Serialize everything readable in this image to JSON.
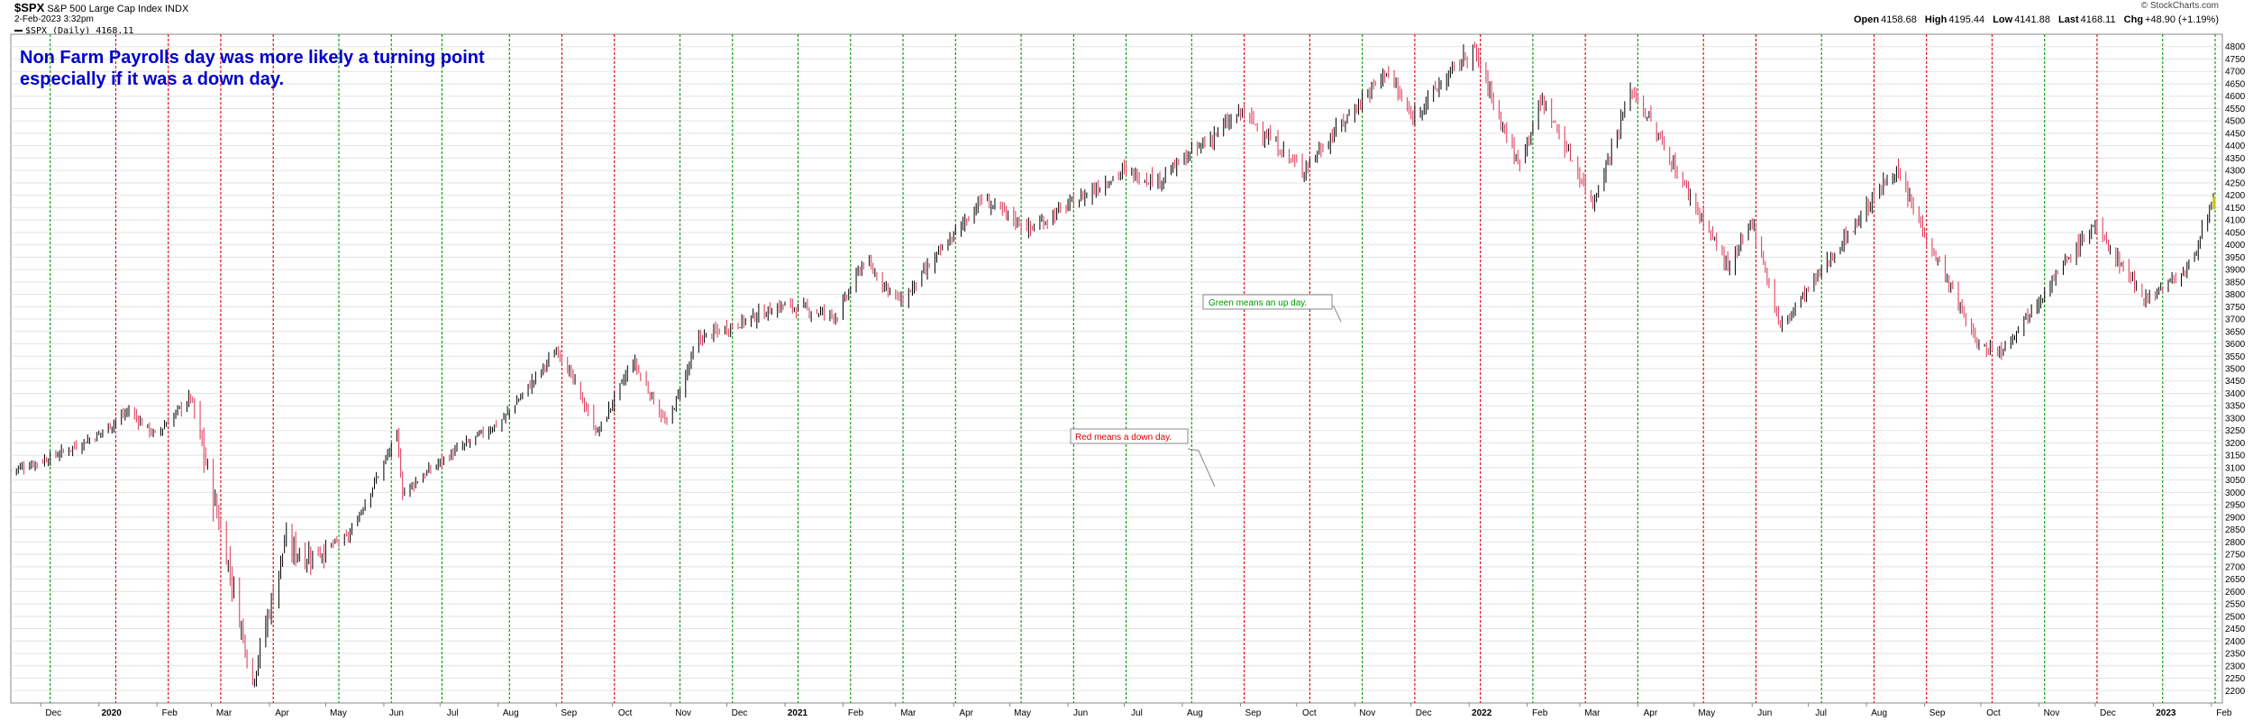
{
  "header": {
    "symbol": "$SPX",
    "name": "S&P 500 Large Cap Index",
    "exchange": "INDX",
    "datetime": "2-Feb-2023 3:32pm",
    "legend": "$SPX (Daily) 4168.11",
    "quote": {
      "open_label": "Open",
      "open": "4158.68",
      "high_label": "High",
      "high": "4195.44",
      "low_label": "Low",
      "low": "4141.88",
      "last_label": "Last",
      "last": "4168.11",
      "chg_label": "Chg",
      "chg": "+48.90 (+1.19%)"
    },
    "credit": "© StockCharts.com"
  },
  "annotations": {
    "headline_line1": "Non Farm Payrolls day was more likely a turning point",
    "headline_line2": "especially if it was a down day.",
    "callout_green": "Green means an up day.",
    "callout_red": "Red means a down day."
  },
  "colors": {
    "up_marker": "#009900",
    "down_marker": "#dd0000",
    "bar_up": "#000000",
    "bar_down": "#dd3355",
    "headline": "#0000cc",
    "grid": "#e3e3e3",
    "last_bar": "#c8c800"
  },
  "chart_data": {
    "type": "line",
    "series_name": "$SPX (Daily)",
    "ylim": [
      2150,
      4850
    ],
    "y_ticks": [
      2200,
      2250,
      2300,
      2350,
      2400,
      2450,
      2500,
      2550,
      2600,
      2650,
      2700,
      2750,
      2800,
      2850,
      2900,
      2950,
      3000,
      3050,
      3100,
      3150,
      3200,
      3250,
      3300,
      3350,
      3400,
      3450,
      3500,
      3550,
      3600,
      3650,
      3700,
      3750,
      3800,
      3850,
      3900,
      3950,
      4000,
      4050,
      4100,
      4150,
      4200,
      4250,
      4300,
      4350,
      4400,
      4450,
      4500,
      4550,
      4600,
      4650,
      4700,
      4750,
      4800
    ],
    "x_ticks": [
      "Dec",
      "2020",
      "Feb",
      "Mar",
      "Apr",
      "May",
      "Jun",
      "Jul",
      "Aug",
      "Sep",
      "Oct",
      "Nov",
      "Dec",
      "2021",
      "Feb",
      "Mar",
      "Apr",
      "May",
      "Jun",
      "Jul",
      "Aug",
      "Sep",
      "Oct",
      "Nov",
      "Dec",
      "2022",
      "Feb",
      "Mar",
      "Apr",
      "May",
      "Jun",
      "Jul",
      "Aug",
      "Sep",
      "Oct",
      "Nov",
      "Dec",
      "2023",
      "Feb"
    ],
    "x_range": [
      "2019-11-15",
      "2023-02-03"
    ],
    "price_path": [
      {
        "date": "2019-11-15",
        "close": 3090
      },
      {
        "date": "2019-12-06",
        "close": 3140
      },
      {
        "date": "2019-12-31",
        "close": 3230
      },
      {
        "date": "2020-01-17",
        "close": 3330
      },
      {
        "date": "2020-01-31",
        "close": 3230
      },
      {
        "date": "2020-02-19",
        "close": 3386
      },
      {
        "date": "2020-03-09",
        "close": 2750
      },
      {
        "date": "2020-03-23",
        "close": 2237
      },
      {
        "date": "2020-04-09",
        "close": 2790
      },
      {
        "date": "2020-04-21",
        "close": 2740
      },
      {
        "date": "2020-05-13",
        "close": 2820
      },
      {
        "date": "2020-06-08",
        "close": 3230
      },
      {
        "date": "2020-06-11",
        "close": 3000
      },
      {
        "date": "2020-07-02",
        "close": 3130
      },
      {
        "date": "2020-08-03",
        "close": 3290
      },
      {
        "date": "2020-09-02",
        "close": 3580
      },
      {
        "date": "2020-09-23",
        "close": 3240
      },
      {
        "date": "2020-10-12",
        "close": 3530
      },
      {
        "date": "2020-10-30",
        "close": 3270
      },
      {
        "date": "2020-11-16",
        "close": 3620
      },
      {
        "date": "2020-12-31",
        "close": 3756
      },
      {
        "date": "2021-01-29",
        "close": 3714
      },
      {
        "date": "2021-02-12",
        "close": 3934
      },
      {
        "date": "2021-03-04",
        "close": 3768
      },
      {
        "date": "2021-04-16",
        "close": 4185
      },
      {
        "date": "2021-05-12",
        "close": 4063
      },
      {
        "date": "2021-06-30",
        "close": 4297
      },
      {
        "date": "2021-07-19",
        "close": 4258
      },
      {
        "date": "2021-09-02",
        "close": 4537
      },
      {
        "date": "2021-10-04",
        "close": 4300
      },
      {
        "date": "2021-11-18",
        "close": 4704
      },
      {
        "date": "2021-12-01",
        "close": 4513
      },
      {
        "date": "2022-01-03",
        "close": 4796
      },
      {
        "date": "2022-01-27",
        "close": 4326
      },
      {
        "date": "2022-02-09",
        "close": 4587
      },
      {
        "date": "2022-03-08",
        "close": 4170
      },
      {
        "date": "2022-03-29",
        "close": 4631
      },
      {
        "date": "2022-05-20",
        "close": 3900
      },
      {
        "date": "2022-06-01",
        "close": 4101
      },
      {
        "date": "2022-06-16",
        "close": 3666
      },
      {
        "date": "2022-08-16",
        "close": 4305
      },
      {
        "date": "2022-09-30",
        "close": 3585
      },
      {
        "date": "2022-10-12",
        "close": 3577
      },
      {
        "date": "2022-11-30",
        "close": 4080
      },
      {
        "date": "2022-12-28",
        "close": 3783
      },
      {
        "date": "2023-01-19",
        "close": 3898
      },
      {
        "date": "2023-02-02",
        "close": 4168
      }
    ],
    "nfp_days": [
      {
        "date": "2019-12-06",
        "direction": "up"
      },
      {
        "date": "2020-01-10",
        "direction": "down"
      },
      {
        "date": "2020-02-07",
        "direction": "down"
      },
      {
        "date": "2020-03-06",
        "direction": "down"
      },
      {
        "date": "2020-04-03",
        "direction": "down"
      },
      {
        "date": "2020-05-08",
        "direction": "up"
      },
      {
        "date": "2020-06-05",
        "direction": "up"
      },
      {
        "date": "2020-07-02",
        "direction": "up"
      },
      {
        "date": "2020-08-07",
        "direction": "up"
      },
      {
        "date": "2020-09-04",
        "direction": "down"
      },
      {
        "date": "2020-10-02",
        "direction": "down"
      },
      {
        "date": "2020-11-06",
        "direction": "up"
      },
      {
        "date": "2020-12-04",
        "direction": "up"
      },
      {
        "date": "2021-01-08",
        "direction": "up"
      },
      {
        "date": "2021-02-05",
        "direction": "up"
      },
      {
        "date": "2021-03-05",
        "direction": "up"
      },
      {
        "date": "2021-04-02",
        "direction": "up"
      },
      {
        "date": "2021-05-07",
        "direction": "up"
      },
      {
        "date": "2021-06-04",
        "direction": "up"
      },
      {
        "date": "2021-07-02",
        "direction": "up"
      },
      {
        "date": "2021-08-06",
        "direction": "up"
      },
      {
        "date": "2021-09-03",
        "direction": "down"
      },
      {
        "date": "2021-10-08",
        "direction": "down"
      },
      {
        "date": "2021-11-05",
        "direction": "up"
      },
      {
        "date": "2021-12-03",
        "direction": "down"
      },
      {
        "date": "2022-01-07",
        "direction": "down"
      },
      {
        "date": "2022-02-04",
        "direction": "up"
      },
      {
        "date": "2022-03-04",
        "direction": "down"
      },
      {
        "date": "2022-04-01",
        "direction": "up"
      },
      {
        "date": "2022-05-06",
        "direction": "down"
      },
      {
        "date": "2022-06-03",
        "direction": "down"
      },
      {
        "date": "2022-07-08",
        "direction": "up"
      },
      {
        "date": "2022-08-05",
        "direction": "down"
      },
      {
        "date": "2022-09-02",
        "direction": "down"
      },
      {
        "date": "2022-10-07",
        "direction": "down"
      },
      {
        "date": "2022-11-04",
        "direction": "up"
      },
      {
        "date": "2022-12-02",
        "direction": "down"
      },
      {
        "date": "2023-01-06",
        "direction": "up"
      },
      {
        "date": "2023-02-03",
        "direction": "up"
      }
    ],
    "grid": true,
    "y_axis_side": "right",
    "last_value": 4168.11
  }
}
